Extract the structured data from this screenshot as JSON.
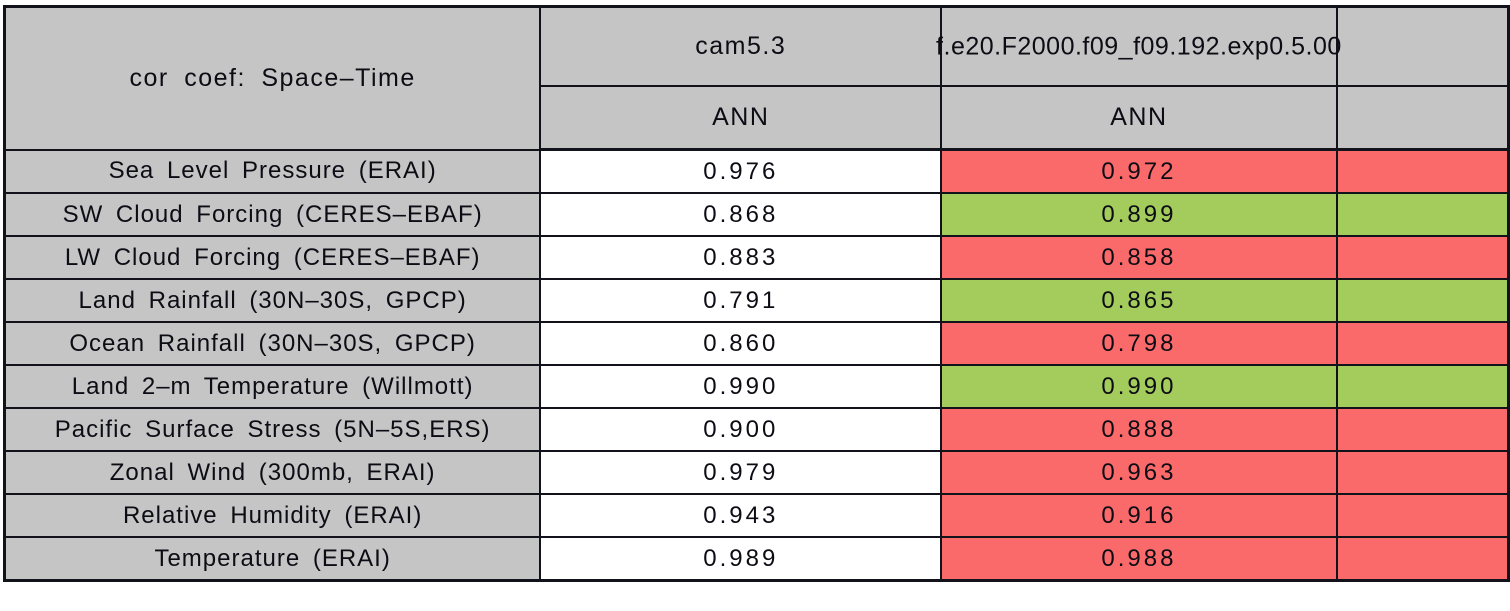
{
  "table": {
    "title": "cor coef: Space–Time",
    "columns": [
      {
        "label": "cam5.3",
        "sublabel": "ANN"
      },
      {
        "label": "f.e20.F2000.f09_f09.192.exp0.5.00",
        "sublabel": "ANN"
      }
    ],
    "rows": [
      {
        "label": "Sea Level Pressure (ERAI)",
        "cam": "0.976",
        "exp": "0.972",
        "status": "worse"
      },
      {
        "label": "SW Cloud Forcing (CERES–EBAF)",
        "cam": "0.868",
        "exp": "0.899",
        "status": "better"
      },
      {
        "label": "LW Cloud Forcing (CERES–EBAF)",
        "cam": "0.883",
        "exp": "0.858",
        "status": "worse"
      },
      {
        "label": "Land Rainfall (30N–30S, GPCP)",
        "cam": "0.791",
        "exp": "0.865",
        "status": "better"
      },
      {
        "label": "Ocean Rainfall (30N–30S, GPCP)",
        "cam": "0.860",
        "exp": "0.798",
        "status": "worse"
      },
      {
        "label": "Land 2–m Temperature (Willmott)",
        "cam": "0.990",
        "exp": "0.990",
        "status": "better"
      },
      {
        "label": "Pacific Surface Stress (5N–5S,ERS)",
        "cam": "0.900",
        "exp": "0.888",
        "status": "worse"
      },
      {
        "label": "Zonal Wind (300mb, ERAI)",
        "cam": "0.979",
        "exp": "0.963",
        "status": "worse"
      },
      {
        "label": "Relative Humidity (ERAI)",
        "cam": "0.943",
        "exp": "0.916",
        "status": "worse"
      },
      {
        "label": "Temperature (ERAI)",
        "cam": "0.989",
        "exp": "0.988",
        "status": "worse"
      }
    ],
    "colors": {
      "title_blue": "#6394eb",
      "header_gray": "#c5c5c5",
      "better_green": "#a4cc5c",
      "worse_red": "#fb6a6a",
      "border": "#12121a"
    }
  },
  "chart_data": {
    "type": "table",
    "title": "cor coef: Space–Time",
    "column_groups": [
      "cam5.3",
      "f.e20.F2000.f09_f09.192.exp0.5.00"
    ],
    "season_subheaders": [
      "ANN",
      "ANN"
    ],
    "row_labels": [
      "Sea Level Pressure (ERAI)",
      "SW Cloud Forcing (CERES–EBAF)",
      "LW Cloud Forcing (CERES–EBAF)",
      "Land Rainfall (30N–30S, GPCP)",
      "Ocean Rainfall (30N–30S, GPCP)",
      "Land 2–m Temperature (Willmott)",
      "Pacific Surface Stress (5N–5S,ERS)",
      "Zonal Wind (300mb, ERAI)",
      "Relative Humidity (ERAI)",
      "Temperature (ERAI)"
    ],
    "series": [
      {
        "name": "cam5.3",
        "values": [
          0.976,
          0.868,
          0.883,
          0.791,
          0.86,
          0.99,
          0.9,
          0.979,
          0.943,
          0.989
        ]
      },
      {
        "name": "f.e20.F2000.f09_f09.192.exp0.5.00",
        "values": [
          0.972,
          0.899,
          0.858,
          0.865,
          0.798,
          0.99,
          0.888,
          0.963,
          0.916,
          0.988
        ]
      }
    ],
    "experiment_cell_highlight": [
      "worse",
      "better",
      "worse",
      "better",
      "worse",
      "better",
      "worse",
      "worse",
      "worse",
      "worse"
    ],
    "highlight_colors": {
      "better": "#a4cc5c",
      "worse": "#fb6a6a"
    },
    "layout": {
      "grid": true,
      "values_centered": true,
      "right_edge_clipped": true
    }
  }
}
